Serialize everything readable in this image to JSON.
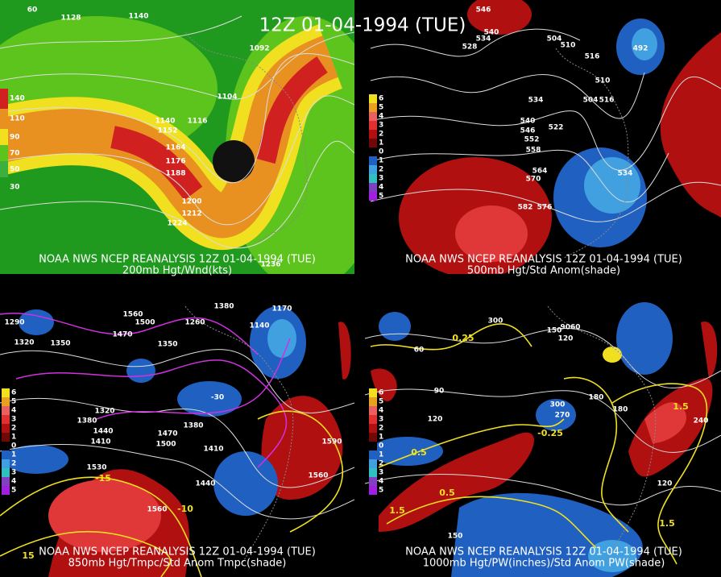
{
  "title": "12Z 01-04-1994 (TUE)",
  "panels": [
    {
      "caption_top": "NOAA NWS NCEP REANALYSIS 12Z 01-04-1994 (TUE)",
      "caption_bottom": "200mb Hgt/Wnd(kts)",
      "legend": [
        "140",
        "110",
        "90",
        "70",
        "50",
        "30"
      ],
      "labels": [
        "60",
        "1128",
        "1140",
        "1092",
        "1104",
        "1116",
        "1140",
        "1152",
        "1164",
        "1176",
        "1188",
        "1200",
        "1212",
        "1224",
        "1236"
      ],
      "yellow_labels": []
    },
    {
      "caption_top": "NOAA NWS NCEP REANALYSIS 12Z 01-04-1994 (TUE)",
      "caption_bottom": "500mb Hgt/Std Anom(shade)",
      "legend": [
        "6",
        "5",
        "4",
        "3",
        "2",
        "1",
        "0",
        "1",
        "2",
        "3",
        "4",
        "5"
      ],
      "labels": [
        "546",
        "540",
        "534",
        "528",
        "504",
        "510",
        "516",
        "492",
        "510",
        "504",
        "516",
        "534",
        "540",
        "546",
        "552",
        "558",
        "564",
        "570",
        "582",
        "576",
        "534",
        "522"
      ],
      "yellow_labels": []
    },
    {
      "caption_top": "NOAA NWS NCEP REANALYSIS 12Z 01-04-1994 (TUE)",
      "caption_bottom": "850mb Hgt/Tmpc/Std Anom Tmpc(shade)",
      "legend": [
        "6",
        "5",
        "4",
        "3",
        "2",
        "1",
        "0",
        "1",
        "2",
        "3",
        "4",
        "5"
      ],
      "labels": [
        "1290",
        "1320",
        "1350",
        "1560",
        "1500",
        "1470",
        "1380",
        "1260",
        "1350",
        "1170",
        "1140",
        "1380",
        "1470",
        "1500",
        "1410",
        "1440",
        "1560",
        "1530",
        "1410",
        "1440",
        "1380",
        "1320",
        "1590",
        "1560",
        "-30"
      ],
      "yellow_labels": [
        "-15",
        "-10",
        "15"
      ]
    },
    {
      "caption_top": "NOAA NWS NCEP REANALYSIS 12Z 01-04-1994 (TUE)",
      "caption_bottom": "1000mb Hgt/PW(inches)/Std Anom PW(shade)",
      "legend": [
        "6",
        "5",
        "4",
        "3",
        "2",
        "1",
        "0",
        "1",
        "2",
        "3",
        "4",
        "5"
      ],
      "labels": [
        "300",
        "150",
        "120",
        "9060",
        "90",
        "120",
        "180",
        "300",
        "270",
        "180",
        "150",
        "120",
        "240",
        "60"
      ],
      "yellow_labels": [
        "0.25",
        "0.5",
        "0.5",
        "1.5",
        "-0.25",
        "1.5",
        "1.5"
      ]
    }
  ]
}
